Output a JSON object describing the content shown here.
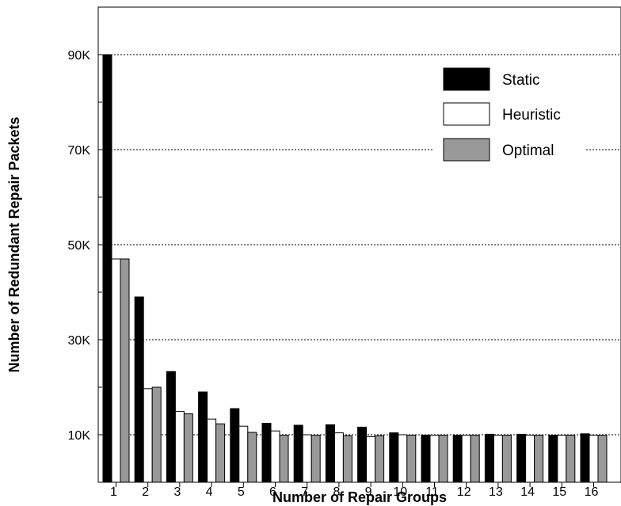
{
  "chart_data": {
    "type": "bar",
    "title": "",
    "xlabel": "Number of Repair Groups",
    "ylabel": "Number of Redundant Repair Packets",
    "categories": [
      "1",
      "2",
      "3",
      "4",
      "5",
      "6",
      "7",
      "8",
      "9",
      "10",
      "11",
      "12",
      "13",
      "14",
      "15",
      "16"
    ],
    "series": [
      {
        "name": "Static",
        "color": "#000000",
        "values": [
          90000,
          39000,
          23300,
          19000,
          15500,
          12400,
          12000,
          12100,
          11600,
          10400,
          9900,
          9900,
          10100,
          10100,
          9900,
          10200
        ]
      },
      {
        "name": "Heuristic",
        "color": "#ffffff",
        "values": [
          47000,
          19700,
          14900,
          13300,
          11800,
          10800,
          10000,
          10400,
          9600,
          10000,
          9900,
          9900,
          9900,
          9900,
          9900,
          9900
        ]
      },
      {
        "name": "Optimal",
        "color": "#999999",
        "values": [
          47000,
          20000,
          14400,
          12300,
          10500,
          9900,
          9900,
          9800,
          9800,
          9900,
          9900,
          9900,
          9900,
          9900,
          9900,
          9900
        ]
      }
    ],
    "yticks": [
      10000,
      30000,
      50000,
      70000,
      90000
    ],
    "ytick_labels": [
      "10K",
      "30K",
      "50K",
      "70K",
      "90K"
    ],
    "ylim": [
      0,
      100000
    ],
    "grid": "horizontal-dotted",
    "legend_position": "top-right"
  }
}
